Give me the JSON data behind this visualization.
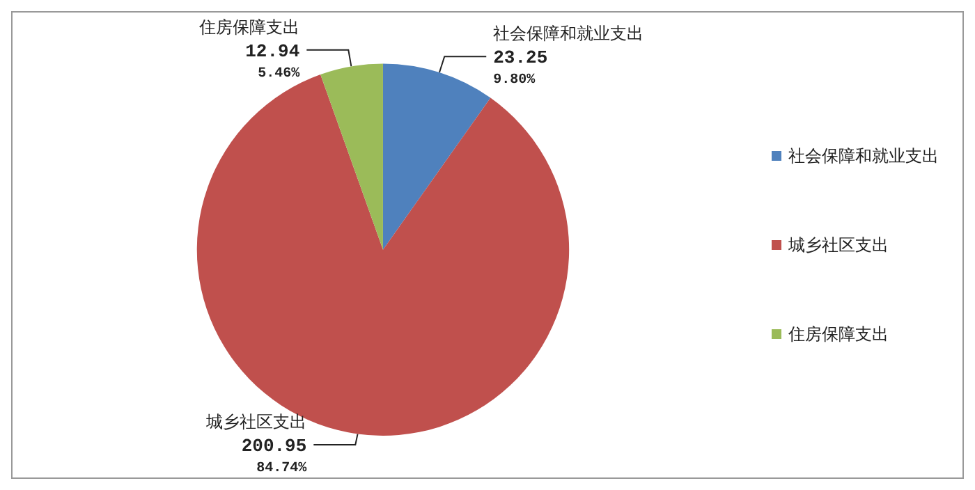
{
  "chart_data": {
    "type": "pie",
    "categories": [
      "社会保障和就业支出",
      "城乡社区支出",
      "住房保障支出"
    ],
    "values": [
      23.25,
      200.95,
      12.94
    ],
    "colors": [
      "#4f81bd",
      "#c0504d",
      "#9bbb59"
    ],
    "value_labels": [
      "23.25\n9.80%",
      "200.95\n84.74%",
      "12.94\n5.46%"
    ],
    "legend": "right"
  }
}
